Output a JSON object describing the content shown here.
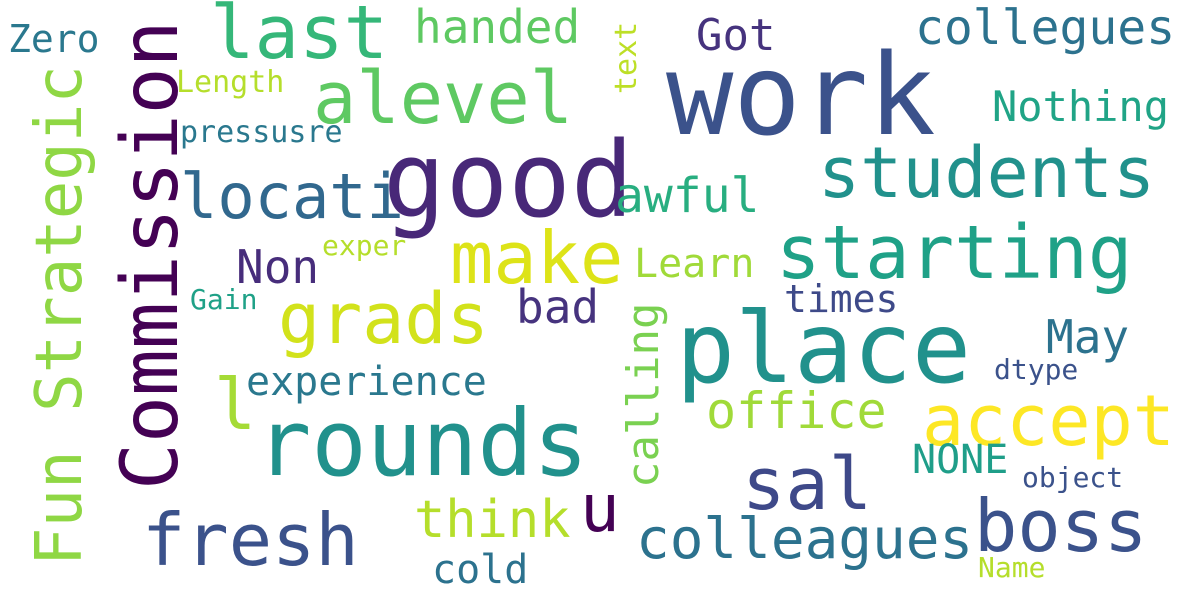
{
  "words": [
    {
      "text": "work",
      "color": "#3b528b"
    },
    {
      "text": "good",
      "color": "#482878"
    },
    {
      "text": "place",
      "color": "#21918c"
    },
    {
      "text": "rounds",
      "color": "#21918c"
    },
    {
      "text": "Commission",
      "color": "#440154"
    },
    {
      "text": "Fun Strategic",
      "color": "#8fd744"
    },
    {
      "text": "starting",
      "color": "#1fa187"
    },
    {
      "text": "students",
      "color": "#21918c"
    },
    {
      "text": "alevel",
      "color": "#5ec962"
    },
    {
      "text": "last",
      "color": "#35b779"
    },
    {
      "text": "accept",
      "color": "#fde725"
    },
    {
      "text": "grads",
      "color": "#d2e21b"
    },
    {
      "text": "make",
      "color": "#dde318"
    },
    {
      "text": "fresh",
      "color": "#3b528b"
    },
    {
      "text": "boss",
      "color": "#3b528b"
    },
    {
      "text": "sal",
      "color": "#3e4989"
    },
    {
      "text": "locati",
      "color": "#31688e"
    },
    {
      "text": "colleagues",
      "color": "#2c728e"
    },
    {
      "text": "collegues",
      "color": "#2c728e"
    },
    {
      "text": "office",
      "color": "#a0da39"
    },
    {
      "text": "think",
      "color": "#b5de2b"
    },
    {
      "text": "May",
      "color": "#2c728e"
    },
    {
      "text": "awful",
      "color": "#28ae80"
    },
    {
      "text": "handed",
      "color": "#5ec962"
    },
    {
      "text": "Nothing",
      "color": "#20a486"
    },
    {
      "text": "Got",
      "color": "#46337e"
    },
    {
      "text": "bad",
      "color": "#46337e"
    },
    {
      "text": "Non",
      "color": "#472d7b"
    },
    {
      "text": "l",
      "color": "#a5db36"
    },
    {
      "text": "u",
      "color": "#440154"
    },
    {
      "text": "experience",
      "color": "#2a788e"
    },
    {
      "text": "Learn",
      "color": "#a0da39"
    },
    {
      "text": "times",
      "color": "#3e4a89"
    },
    {
      "text": "calling",
      "color": "#7ad151"
    },
    {
      "text": "NONE",
      "color": "#1f9e89"
    },
    {
      "text": "cold",
      "color": "#2c728e"
    },
    {
      "text": "Zero",
      "color": "#2a788e"
    },
    {
      "text": "pressusre",
      "color": "#2a788e"
    },
    {
      "text": "Length",
      "color": "#b5de2b"
    },
    {
      "text": "text",
      "color": "#bddf26"
    },
    {
      "text": "exper",
      "color": "#b5de2b"
    },
    {
      "text": "Gain",
      "color": "#1fa187"
    },
    {
      "text": "dtype",
      "color": "#3b528b"
    },
    {
      "text": "object",
      "color": "#3b528b"
    },
    {
      "text": "Name",
      "color": "#b5de2b"
    }
  ]
}
